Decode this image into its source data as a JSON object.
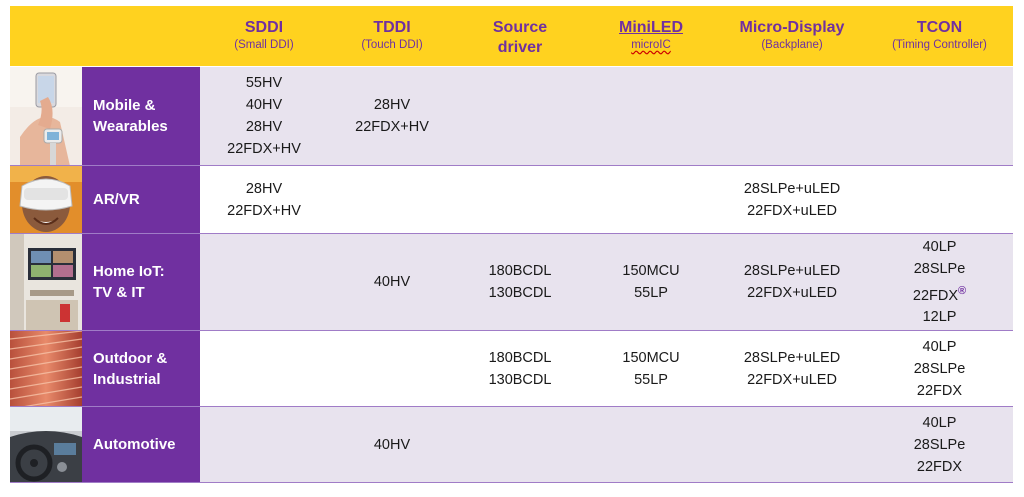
{
  "header": [
    {
      "title": "SDDI",
      "sub": "(Small DDI)"
    },
    {
      "title": "TDDI",
      "sub": "(Touch DDI)"
    },
    {
      "title": "Source\ndriver",
      "sub": ""
    },
    {
      "title": "MiniLED",
      "sub": "microIC"
    },
    {
      "title": "Micro-Display",
      "sub": "(Backplane)"
    },
    {
      "title": "TCON",
      "sub": "(Timing Controller)"
    }
  ],
  "rows": [
    {
      "label": "Mobile &\nWearables",
      "image": "smartwatch-phone-photo",
      "cells": [
        [
          "55HV",
          "40HV",
          "28HV",
          "22FDX+HV"
        ],
        [
          "28HV",
          "22FDX+HV"
        ],
        [],
        [],
        [],
        []
      ]
    },
    {
      "label": "AR/VR",
      "image": "vr-headset-photo",
      "cells": [
        [
          "28HV",
          "22FDX+HV"
        ],
        [],
        [],
        [],
        [
          "28SLPe+uLED",
          "22FDX+uLED"
        ],
        []
      ]
    },
    {
      "label": "Home IoT:\nTV & IT",
      "image": "home-tv-photo",
      "cells": [
        [],
        [
          "40HV"
        ],
        [
          "180BCDL",
          "130BCDL"
        ],
        [
          "150MCU",
          "55LP"
        ],
        [
          "28SLPe+uLED",
          "22FDX+uLED"
        ],
        [
          "40LP",
          "28SLPe",
          "22FDX",
          "12LP"
        ]
      ]
    },
    {
      "label": "Outdoor &\nIndustrial",
      "image": "outdoor-display-photo",
      "cells": [
        [],
        [],
        [
          "180BCDL",
          "130BCDL"
        ],
        [
          "150MCU",
          "55LP"
        ],
        [
          "28SLPe+uLED",
          "22FDX+uLED"
        ],
        [
          "40LP",
          "28SLPe",
          "22FDX"
        ]
      ]
    },
    {
      "label": "Automotive",
      "image": "car-dashboard-photo",
      "cells": [
        [],
        [
          "40HV"
        ],
        [],
        [],
        [],
        [
          "40LP",
          "28SLPe",
          "22FDX"
        ]
      ]
    }
  ],
  "registered_mark": "®",
  "colors": {
    "header_bg": "#ffd21f",
    "accent": "#7030a0",
    "shaded_row": "#e8e3ee"
  }
}
